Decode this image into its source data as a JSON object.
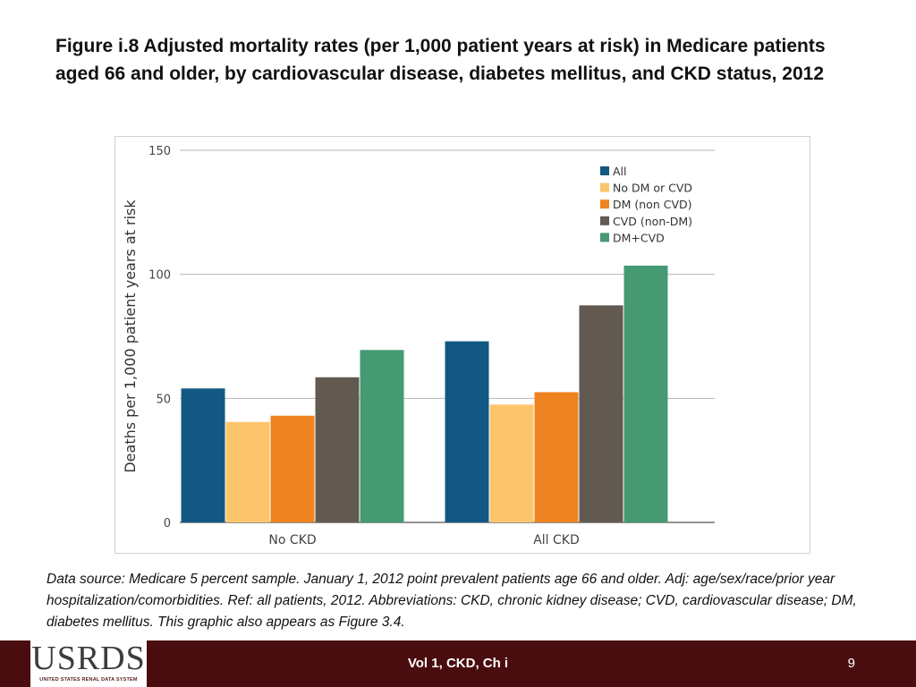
{
  "slide": {
    "title": "Figure i.8  Adjusted mortality rates (per 1,000 patient years at risk) in Medicare patients aged 66 and older, by cardiovascular disease, diabetes mellitus, and CKD status, 2012",
    "caption": "Data source: Medicare 5 percent sample. January 1, 2012 point prevalent patients age 66 and older. Adj: age/sex/race/prior year hospitalization/comorbidities. Ref: all patients, 2012. Abbreviations: CKD, chronic kidney disease; CVD, cardiovascular disease; DM, diabetes mellitus. This graphic also appears as Figure 3.4.",
    "footer_text": "Vol 1, CKD, Ch i",
    "page_number": "9",
    "logo_text": "USRDS",
    "logo_subtext": "UNITED STATES RENAL DATA SYSTEM"
  },
  "chart_data": {
    "type": "bar",
    "title": "",
    "xlabel": "",
    "ylabel": "Deaths per 1,000 patient years at risk",
    "ylim": [
      0,
      150
    ],
    "yticks": [
      0,
      50,
      100,
      150
    ],
    "grid": true,
    "legend_position": "top-right",
    "categories": [
      "No CKD",
      "All CKD"
    ],
    "series": [
      {
        "name": "All",
        "color": "#125882",
        "values": [
          54,
          73
        ]
      },
      {
        "name": "No DM or CVD",
        "color": "#fdc56b",
        "values": [
          40.5,
          47.5
        ]
      },
      {
        "name": "DM (non CVD)",
        "color": "#ee8321",
        "values": [
          43,
          52.5
        ]
      },
      {
        "name": "CVD (non-DM)",
        "color": "#625a51",
        "values": [
          58.5,
          87.5
        ]
      },
      {
        "name": "DM+CVD",
        "color": "#459a73",
        "values": [
          69.5,
          103.5
        ]
      }
    ]
  }
}
